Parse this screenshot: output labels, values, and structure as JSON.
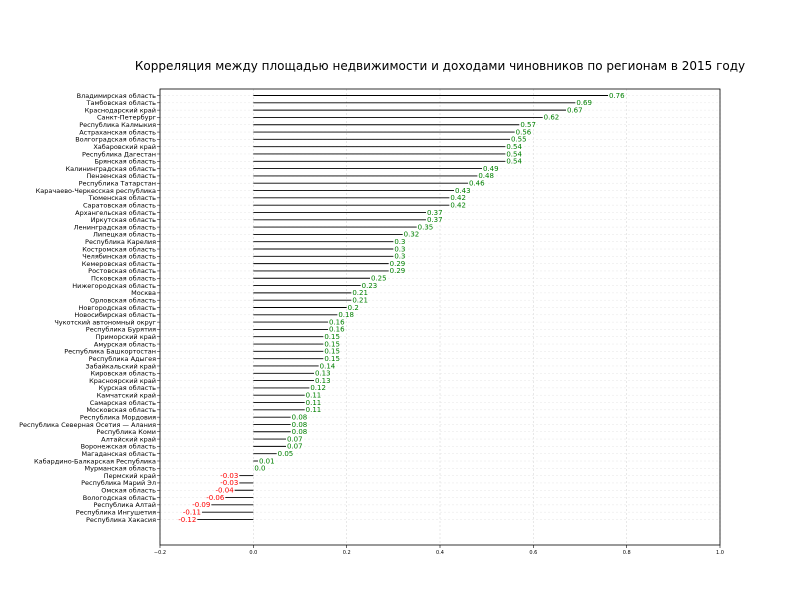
{
  "chart_data": {
    "type": "bar",
    "orientation": "horizontal",
    "title": "Корреляция между площадью недвижимости и доходами чиновников по регионам в 2015 году",
    "xlabel": "",
    "ylabel": "",
    "xlim": [
      -0.2,
      1.0
    ],
    "xticks": [
      "−0.2",
      "0.0",
      "0.2",
      "0.4",
      "0.6",
      "0.8",
      "1.0"
    ],
    "grid": true,
    "positive_color": "#008000",
    "negative_color": "#ff0000",
    "bar_line_color": "#000000",
    "categories": [
      "Владимирская область",
      "Тамбовская область",
      "Краснодарский край",
      "Санкт-Петербург",
      "Республика Калмыкия",
      "Астраханская область",
      "Волгоградская область",
      "Хабаровский край",
      "Республика Дагестан",
      "Брянская область",
      "Калининградская область",
      "Пензенская область",
      "Республика Татарстан",
      "Карачаево-Черкесская республика",
      "Тюменская область",
      "Саратовская область",
      "Архангельская область",
      "Иркутская область",
      "Ленинградская область",
      "Липецкая область",
      "Республика Карелия",
      "Костромская область",
      "Челябинская область",
      "Кемеровская область",
      "Ростовская область",
      "Псковская область",
      "Нижегородская область",
      "Москва",
      "Орловская область",
      "Новгородская область",
      "Новосибирская область",
      "Чукотский автономный округ",
      "Республика Бурятия",
      "Приморский край",
      "Амурская область",
      "Республика Башкортостан",
      "Республика Адыгея",
      "Забайкальский край",
      "Кировская область",
      "Красноярский край",
      "Курская область",
      "Камчатский край",
      "Самарская область",
      "Московская область",
      "Республика Мордовия",
      "Республика Северная Осетия — Алания",
      "Республика Коми",
      "Алтайский край",
      "Воронежская область",
      "Магаданская область",
      "Кабардино-Балкарская Республика",
      "Мурманская область",
      "Пермский край",
      "Республика Марий Эл",
      "Омская область",
      "Вологодская область",
      "Республика Алтай",
      "Республика Ингушетия",
      "Республика Хакасия"
    ],
    "values": [
      0.76,
      0.69,
      0.67,
      0.62,
      0.57,
      0.56,
      0.55,
      0.54,
      0.54,
      0.54,
      0.49,
      0.48,
      0.46,
      0.43,
      0.42,
      0.42,
      0.37,
      0.37,
      0.35,
      0.32,
      0.3,
      0.3,
      0.3,
      0.29,
      0.29,
      0.25,
      0.23,
      0.21,
      0.21,
      0.2,
      0.18,
      0.16,
      0.16,
      0.15,
      0.15,
      0.15,
      0.15,
      0.14,
      0.13,
      0.13,
      0.12,
      0.11,
      0.11,
      0.11,
      0.08,
      0.08,
      0.08,
      0.07,
      0.07,
      0.05,
      0.01,
      0.0,
      -0.03,
      -0.03,
      -0.04,
      -0.06,
      -0.09,
      -0.11,
      -0.12
    ],
    "value_labels": [
      "0.76",
      "0.69",
      "0.67",
      "0.62",
      "0.57",
      "0.56",
      "0.55",
      "0.54",
      "0.54",
      "0.54",
      "0.49",
      "0.48",
      "0.46",
      "0.43",
      "0.42",
      "0.42",
      "0.37",
      "0.37",
      "0.35",
      "0.32",
      "0.3",
      "0.3",
      "0.3",
      "0.29",
      "0.29",
      "0.25",
      "0.23",
      "0.21",
      "0.21",
      "0.2",
      "0.18",
      "0.16",
      "0.16",
      "0.15",
      "0.15",
      "0.15",
      "0.15",
      "0.14",
      "0.13",
      "0.13",
      "0.12",
      "0.11",
      "0.11",
      "0.11",
      "0.08",
      "0.08",
      "0.08",
      "0.07",
      "0.07",
      "0.05",
      "0.01",
      "0.0",
      "-0.03",
      "-0.03",
      "-0.04",
      "-0.06",
      "-0.09",
      "-0.11",
      "-0.12"
    ]
  }
}
